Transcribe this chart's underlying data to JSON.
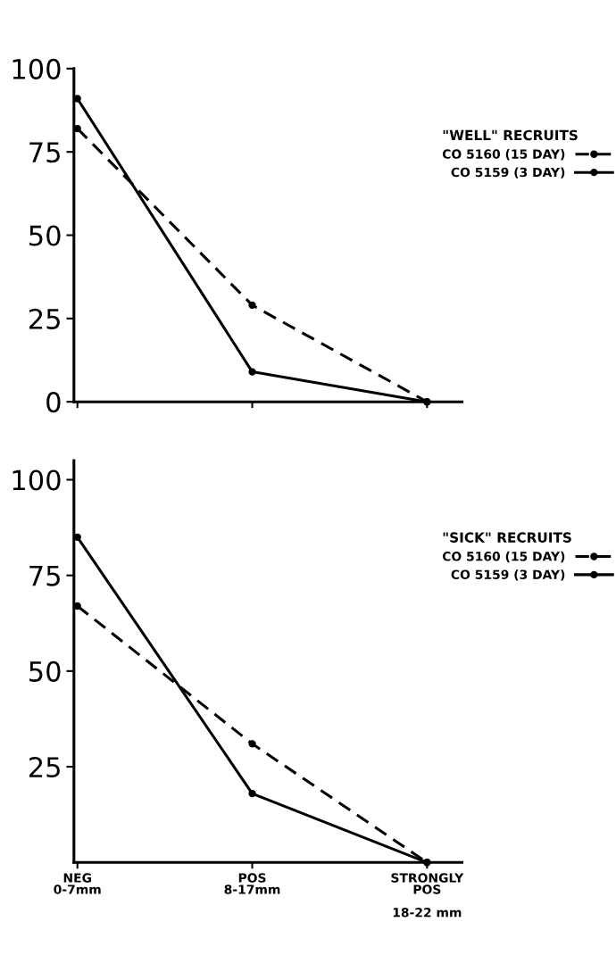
{
  "chart_data": [
    {
      "type": "line",
      "categories": [
        null,
        null,
        null
      ],
      "ylim": [
        0,
        100
      ],
      "yticks": [
        0,
        25,
        50,
        75,
        100
      ],
      "tick_labels": "y",
      "legend": "top right",
      "legend_title": "\"WELL\" RECRUITS",
      "marker": "circle",
      "grid": false,
      "series": [
        {
          "name": "CO 5160 (15 DAY)",
          "color": "#000000",
          "line_style": "dashed",
          "values": [
            82,
            29,
            0
          ]
        },
        {
          "name": "CO 5159 (3 DAY)",
          "color": "#000000",
          "line_style": "solid",
          "values": [
            91,
            9,
            0
          ]
        }
      ]
    },
    {
      "type": "line",
      "categories": [
        "NEG\n0-7mm",
        "POS\n8-17mm",
        "STRONGLY\nPOS\n\n18-22 mm"
      ],
      "ylim": [
        0,
        105
      ],
      "yticks": [
        25,
        50,
        75,
        100
      ],
      "legend": "top right",
      "legend_title": "\"SICK\" RECRUITS",
      "marker": "circle",
      "grid": false,
      "series": [
        {
          "name": "CO 5160 (15 DAY)",
          "color": "#000000",
          "line_style": "dashed",
          "values": [
            67,
            31,
            0
          ]
        },
        {
          "name": "CO 5159 (3 DAY)",
          "color": "#000000",
          "line_style": "solid",
          "values": [
            85,
            18,
            0
          ]
        }
      ]
    }
  ]
}
